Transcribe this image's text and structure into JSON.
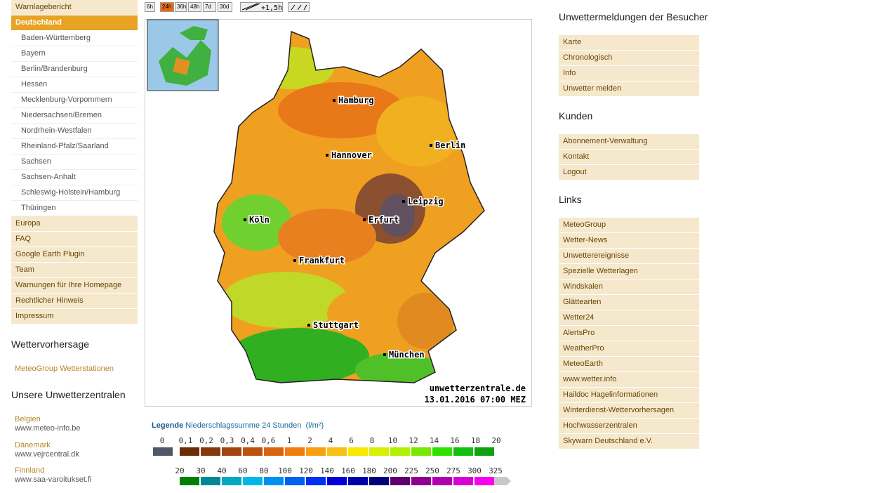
{
  "nav": {
    "top": [
      "Warnlagebericht"
    ],
    "active": "Deutschland",
    "sub": [
      "Baden-Württemberg",
      "Bayern",
      "Berlin/Brandenburg",
      "Hessen",
      "Mecklenburg-Vorpommern",
      "Niedersachsen/Bremen",
      "Nordrhein-Westfalen",
      "Rheinland-Pfalz/Saarland",
      "Sachsen",
      "Sachsen-Anhalt",
      "Schleswig-Holstein/Hamburg",
      "Thüringen"
    ],
    "more": [
      "Europa",
      "FAQ",
      "Google Earth Plugin",
      "Team",
      "Warnungen für Ihre Homepage",
      "Rechtlicher Hinweis",
      "Impressum"
    ]
  },
  "forecast": {
    "heading": "Wettervorhersage",
    "link": "MeteoGroup Wetterstationen"
  },
  "centers": {
    "heading": "Unsere Unwetterzentralen",
    "items": [
      {
        "country": "Belgien",
        "url": "www.meteo-info.be"
      },
      {
        "country": "Dänemark",
        "url": "www.vejrcentral.dk"
      },
      {
        "country": "Finnland",
        "url": "www.saa-varoitukset.fi"
      }
    ]
  },
  "toolbar": {
    "ranges": [
      "6h",
      "24h",
      "36h",
      "48h",
      "7d",
      "30d"
    ],
    "active": "24h",
    "shift": "+1,5h"
  },
  "map": {
    "cities": [
      "Hamburg",
      "Berlin",
      "Hannover",
      "Leipzig",
      "Köln",
      "Erfurt",
      "Frankfurt",
      "Stuttgart",
      "München"
    ],
    "credit": "unwetterzentrale.de",
    "timestamp": "13.01.2016 07:00 MEZ"
  },
  "legend": {
    "label": "Legende",
    "title": "Niederschlagssumme 24 Stunden",
    "unit": "(l/m²)",
    "row1_labels": [
      "0",
      "0,1",
      "0,2",
      "0,3",
      "0,4",
      "0,6",
      "1",
      "2",
      "4",
      "6",
      "8",
      "10",
      "12",
      "14",
      "16",
      "18",
      "20"
    ],
    "row1_colors": [
      "#505868",
      "#6b2c08",
      "#86380c",
      "#a2440e",
      "#bc5210",
      "#d86410",
      "#f07c10",
      "#f8a010",
      "#f8c010",
      "#f8e800",
      "#d8f000",
      "#b0f000",
      "#78e800",
      "#30e000",
      "#10c010",
      "#10a010"
    ],
    "row2_labels": [
      "20",
      "30",
      "40",
      "60",
      "80",
      "100",
      "120",
      "140",
      "160",
      "180",
      "200",
      "225",
      "250",
      "275",
      "300",
      "325"
    ],
    "row2_colors": [
      "#008000",
      "#008898",
      "#00a8c0",
      "#00b8e8",
      "#0090f0",
      "#0060f0",
      "#0030f0",
      "#0000d8",
      "#0000a8",
      "#000078",
      "#600070",
      "#900090",
      "#b000b0",
      "#d800d8",
      "#f800f0",
      "#c8c8c8"
    ]
  },
  "right": [
    {
      "heading": "Unwettermeldungen der Besucher",
      "items": [
        "Karte",
        "Chronologisch",
        "Info",
        "Unwetter melden"
      ]
    },
    {
      "heading": "Kunden",
      "items": [
        "Abonnement-Verwaltung",
        "Kontakt",
        "Logout"
      ]
    },
    {
      "heading": "Links",
      "items": [
        "MeteoGroup",
        "Wetter-News",
        "Unwetterereignisse",
        "Spezielle Wetterlagen",
        "Windskalen",
        "Glättearten",
        "Wetter24",
        "AlertsPro",
        "WeatherPro",
        "MeteoEarth",
        "www.wetter.info",
        "Haildoc Hagelinformationen",
        "Winterdienst-Wettervorhersagen",
        "Hochwasserzentralen",
        "Skywarn Deutschland e.V."
      ]
    }
  ]
}
